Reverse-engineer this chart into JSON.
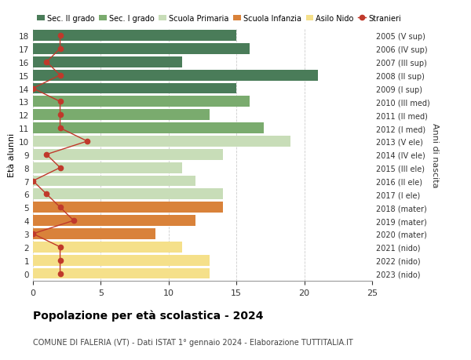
{
  "ages": [
    18,
    17,
    16,
    15,
    14,
    13,
    12,
    11,
    10,
    9,
    8,
    7,
    6,
    5,
    4,
    3,
    2,
    1,
    0
  ],
  "right_labels": [
    "2005 (V sup)",
    "2006 (IV sup)",
    "2007 (III sup)",
    "2008 (II sup)",
    "2009 (I sup)",
    "2010 (III med)",
    "2011 (II med)",
    "2012 (I med)",
    "2013 (V ele)",
    "2014 (IV ele)",
    "2015 (III ele)",
    "2016 (II ele)",
    "2017 (I ele)",
    "2018 (mater)",
    "2019 (mater)",
    "2020 (mater)",
    "2021 (nido)",
    "2022 (nido)",
    "2023 (nido)"
  ],
  "bar_values": [
    15,
    16,
    11,
    21,
    15,
    16,
    13,
    17,
    19,
    14,
    11,
    12,
    14,
    14,
    12,
    9,
    11,
    13,
    13
  ],
  "stranieri_values": [
    2,
    2,
    1,
    2,
    0,
    2,
    2,
    2,
    4,
    1,
    2,
    0,
    1,
    2,
    3,
    0,
    2,
    2,
    2
  ],
  "bar_colors": [
    "#4a7c59",
    "#4a7c59",
    "#4a7c59",
    "#4a7c59",
    "#4a7c59",
    "#7aab6e",
    "#7aab6e",
    "#7aab6e",
    "#c8ddb8",
    "#c8ddb8",
    "#c8ddb8",
    "#c8ddb8",
    "#c8ddb8",
    "#d9823a",
    "#d9823a",
    "#d9823a",
    "#f5e08a",
    "#f5e08a",
    "#f5e08a"
  ],
  "legend_labels": [
    "Sec. II grado",
    "Sec. I grado",
    "Scuola Primaria",
    "Scuola Infanzia",
    "Asilo Nido",
    "Stranieri"
  ],
  "legend_colors": [
    "#4a7c59",
    "#7aab6e",
    "#c8ddb8",
    "#d9823a",
    "#f5e08a",
    "#c0392b"
  ],
  "stranieri_color": "#c0392b",
  "title": "Popolazione per età scolastica - 2024",
  "subtitle": "COMUNE DI FALERIA (VT) - Dati ISTAT 1° gennaio 2024 - Elaborazione TUTTITALIA.IT",
  "ylabel": "Età alunni",
  "right_ylabel": "Anni di nascita",
  "xlim": [
    0,
    25
  ],
  "xticks": [
    0,
    5,
    10,
    15,
    20,
    25
  ],
  "bg_color": "#ffffff",
  "grid_color": "#cccccc"
}
